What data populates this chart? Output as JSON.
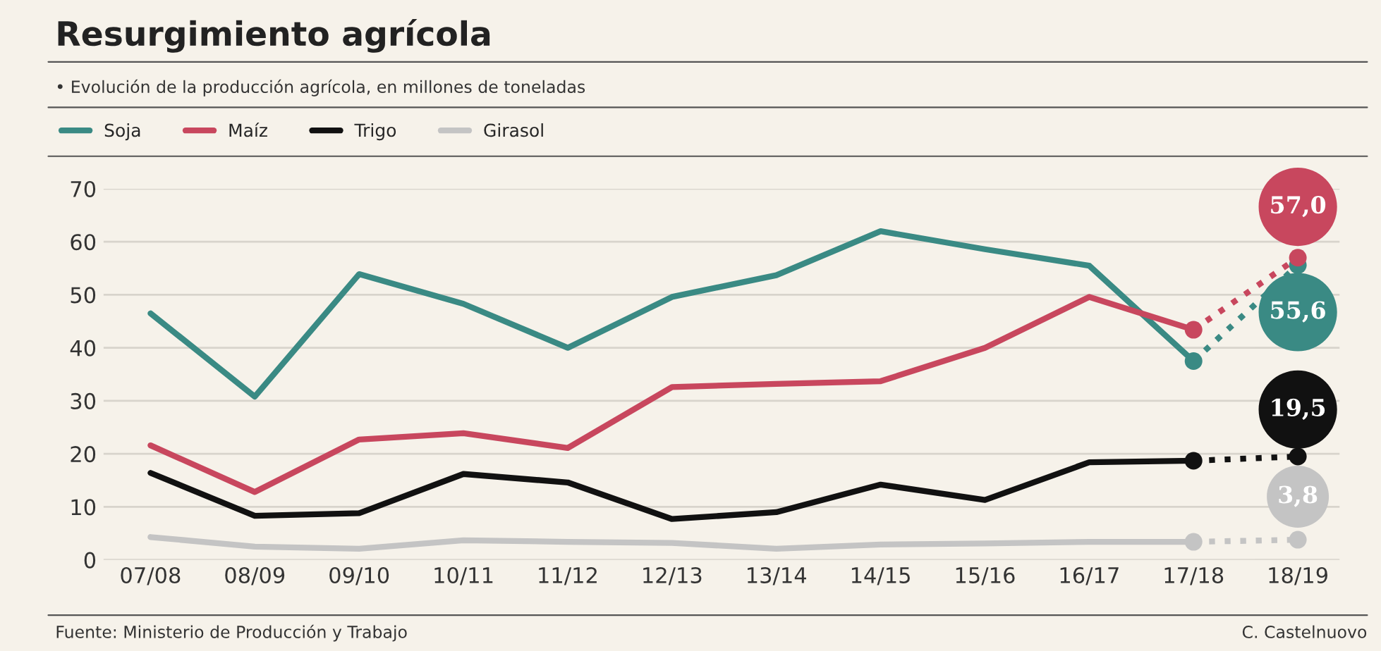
{
  "chart_data": {
    "type": "line",
    "title": "Resurgimiento agrícola",
    "subtitle": "• Evolución de la producción agrícola, en millones de toneladas",
    "categories": [
      "07/08",
      "08/09",
      "09/10",
      "10/11",
      "11/12",
      "12/13",
      "13/14",
      "14/15",
      "15/16",
      "16/17",
      "17/18",
      "18/19"
    ],
    "series": [
      {
        "name": "Soja",
        "color": "#3a8a84",
        "values": [
          46.5,
          30.8,
          53.9,
          48.3,
          40.0,
          49.6,
          53.7,
          62.0,
          58.6,
          55.5,
          37.5,
          null
        ]
      },
      {
        "name": "Maíz",
        "color": "#c8475e",
        "values": [
          21.6,
          12.8,
          22.7,
          23.9,
          21.1,
          32.6,
          33.2,
          33.7,
          40.0,
          49.6,
          43.4,
          null
        ]
      },
      {
        "name": "Trigo",
        "color": "#111111",
        "values": [
          16.4,
          8.3,
          8.8,
          16.2,
          14.6,
          7.7,
          9.0,
          14.2,
          11.3,
          18.4,
          18.7,
          null
        ]
      },
      {
        "name": "Girasol",
        "color": "#c4c4c4",
        "values": [
          4.3,
          2.5,
          2.1,
          3.7,
          3.4,
          3.2,
          2.1,
          2.9,
          3.1,
          3.4,
          3.4,
          null
        ]
      },
      {
        "color": "#3a8a84",
        "line_style": "dotted",
        "marker": "circle",
        "values": [
          null,
          null,
          null,
          null,
          null,
          null,
          null,
          null,
          null,
          null,
          37.5,
          55.6
        ],
        "value_labels": [
          null,
          null,
          null,
          null,
          null,
          null,
          null,
          null,
          null,
          null,
          null,
          "55,6"
        ]
      },
      {
        "color": "#c8475e",
        "line_style": "dotted",
        "marker": "circle",
        "values": [
          null,
          null,
          null,
          null,
          null,
          null,
          null,
          null,
          null,
          null,
          43.4,
          57.0
        ],
        "value_labels": [
          null,
          null,
          null,
          null,
          null,
          null,
          null,
          null,
          null,
          null,
          null,
          "57,0"
        ]
      },
      {
        "color": "#111111",
        "line_style": "dotted",
        "marker": "circle",
        "values": [
          null,
          null,
          null,
          null,
          null,
          null,
          null,
          null,
          null,
          null,
          18.7,
          19.5
        ],
        "value_labels": [
          null,
          null,
          null,
          null,
          null,
          null,
          null,
          null,
          null,
          null,
          null,
          "19,5"
        ]
      },
      {
        "color": "#c4c4c4",
        "line_style": "dotted",
        "marker": "circle",
        "values": [
          null,
          null,
          null,
          null,
          null,
          null,
          null,
          null,
          null,
          null,
          3.4,
          3.8
        ],
        "value_labels": [
          null,
          null,
          null,
          null,
          null,
          null,
          null,
          null,
          null,
          null,
          null,
          "3,8"
        ]
      }
    ],
    "ylim": [
      0,
      70
    ],
    "yticks": [
      0,
      10,
      20,
      30,
      40,
      50,
      60,
      70
    ],
    "grid": "y",
    "legend": "top left",
    "annotations": [
      "Fuente: Ministerio de Producción y Trabajo",
      "C. Castelnuovo"
    ]
  }
}
